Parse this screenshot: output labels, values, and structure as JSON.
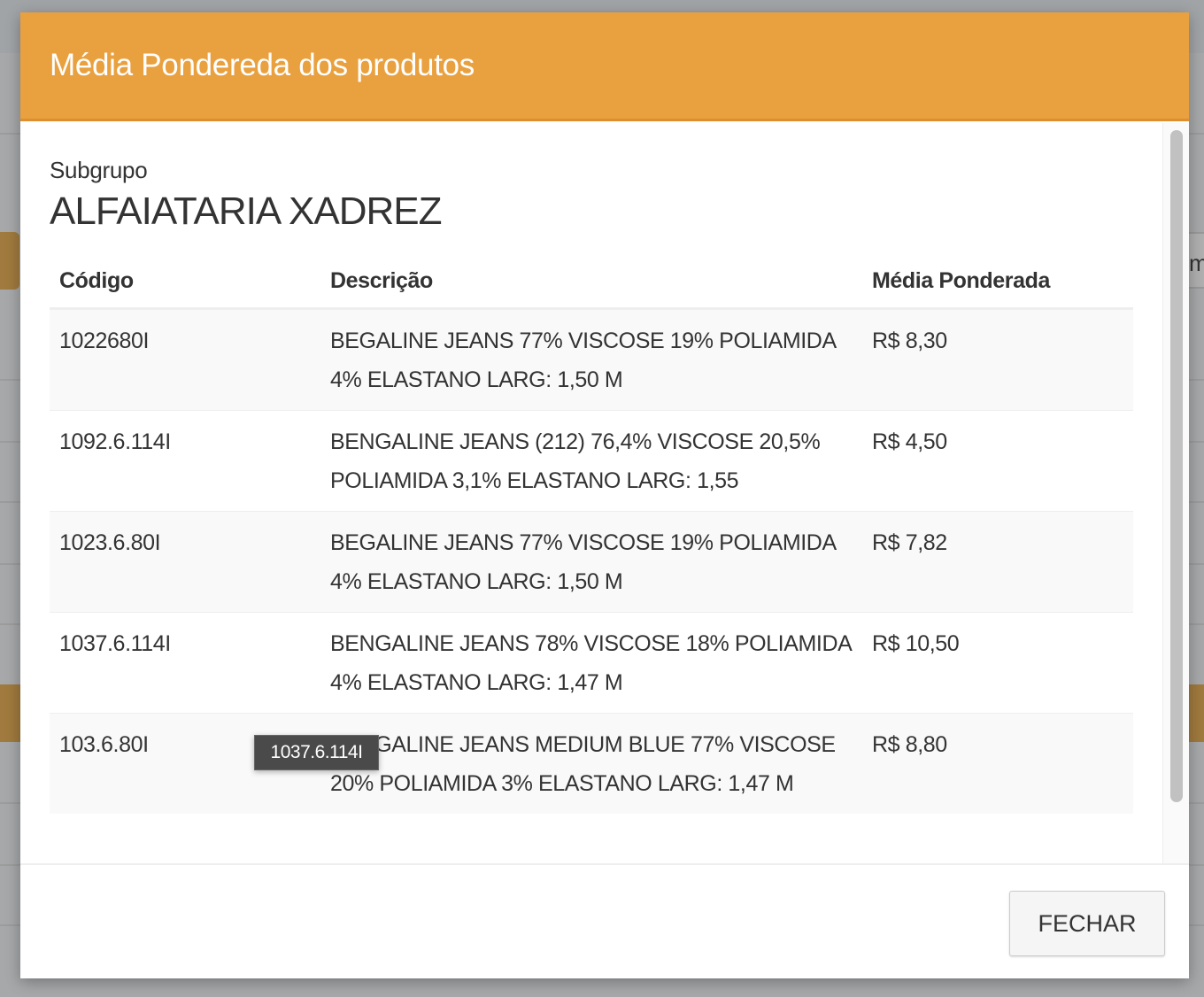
{
  "modal": {
    "title": "Média Pondereda dos produtos",
    "subgroup_label": "Subgrupo",
    "subgroup_name": "ALFAIATARIA XADREZ",
    "columns": [
      "Código",
      "Descrição",
      "Média Ponderada"
    ],
    "rows": [
      {
        "code": "1022680I",
        "description": "BEGALINE JEANS 77% VISCOSE 19% POLIAMIDA 4% ELASTANO LARG: 1,50 M",
        "average": "R$ 8,30"
      },
      {
        "code": "1092.6.114I",
        "description": "BENGALINE JEANS (212) 76,4% VISCOSE 20,5% POLIAMIDA 3,1% ELASTANO LARG: 1,55",
        "average": "R$ 4,50"
      },
      {
        "code": "1023.6.80I",
        "description": "BEGALINE JEANS 77% VISCOSE 19% POLIAMIDA 4% ELASTANO LARG: 1,50 M",
        "average": "R$ 7,82"
      },
      {
        "code": "1037.6.114I",
        "description": "BENGALINE JEANS 78% VISCOSE 18% POLIAMIDA 4% ELASTANO LARG: 1,47 M",
        "average": "R$ 10,50"
      },
      {
        "code": "103.6.80I",
        "description": "BENGALINE JEANS MEDIUM BLUE 77% VISCOSE 20% POLIAMIDA 3% ELASTANO LARG: 1,47 M",
        "average": "R$ 8,80"
      }
    ],
    "close_label": "FECHAR",
    "tooltip": "1037.6.114I"
  },
  "background": {
    "partial_text": "m"
  },
  "colors": {
    "header": "#e9a03e",
    "overlay": "#a6a8aa"
  }
}
